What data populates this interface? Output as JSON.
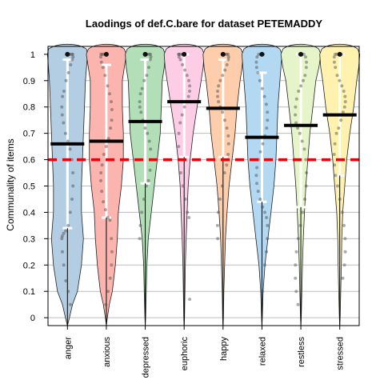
{
  "chart_data": {
    "type": "violin",
    "title": "Laodings of def.C.bare for dataset PETEMADDY",
    "xlabel": "",
    "ylabel": "Communality of items",
    "ylim": [
      -0.03,
      1.03
    ],
    "yticks": [
      0,
      0.1,
      0.2,
      0.3,
      0.4,
      0.5,
      0.6,
      0.7,
      0.8,
      0.9,
      1
    ],
    "ytick_labels": [
      "0",
      "0.1",
      "0.2",
      "0.3",
      "0.4",
      "0.5",
      "0.6",
      "0.7",
      "0.8",
      "0.9",
      "1"
    ],
    "grid": true,
    "reference_line": {
      "y": 0.6,
      "color": "#e8000b",
      "style": "dashed"
    },
    "categories": [
      "anger",
      "anxious",
      "depressed",
      "euphoric",
      "happy",
      "relaxed",
      "restless",
      "stressed"
    ],
    "colors": [
      "#b3cde3",
      "#fbb4ae",
      "#b2dfb8",
      "#fccde5",
      "#fdcdac",
      "#b3d9f2",
      "#e6f5c9",
      "#fff2ae"
    ],
    "means": [
      0.66,
      0.67,
      0.745,
      0.82,
      0.795,
      0.685,
      0.73,
      0.77
    ],
    "sd_low": [
      0.34,
      0.38,
      0.51,
      0.61,
      0.61,
      0.44,
      0.42,
      0.54
    ],
    "sd_high": [
      0.98,
      0.96,
      0.98,
      1.0,
      0.98,
      0.93,
      1.0,
      1.0
    ],
    "range_min": [
      0.0,
      0.0,
      0.0,
      0.0,
      0.0,
      0.0,
      0.0,
      0.0
    ],
    "density_profiles": [
      [
        [
          0,
          0.1
        ],
        [
          0.05,
          0.25
        ],
        [
          0.1,
          0.5
        ],
        [
          0.2,
          0.7
        ],
        [
          0.3,
          0.8
        ],
        [
          0.4,
          0.7
        ],
        [
          0.5,
          0.7
        ],
        [
          0.6,
          0.75
        ],
        [
          0.7,
          0.8
        ],
        [
          0.8,
          0.85
        ],
        [
          0.9,
          0.9
        ],
        [
          0.95,
          0.95
        ],
        [
          1.0,
          1.0
        ],
        [
          1.02,
          0.95
        ]
      ],
      [
        [
          0,
          0.05
        ],
        [
          0.05,
          0.15
        ],
        [
          0.1,
          0.3
        ],
        [
          0.2,
          0.45
        ],
        [
          0.3,
          0.55
        ],
        [
          0.4,
          0.6
        ],
        [
          0.5,
          0.75
        ],
        [
          0.6,
          0.85
        ],
        [
          0.7,
          0.85
        ],
        [
          0.8,
          0.8
        ],
        [
          0.9,
          0.8
        ],
        [
          0.95,
          0.9
        ],
        [
          1.0,
          1.0
        ],
        [
          1.02,
          0.9
        ]
      ],
      [
        [
          0,
          0.02
        ],
        [
          0.1,
          0.05
        ],
        [
          0.2,
          0.08
        ],
        [
          0.3,
          0.15
        ],
        [
          0.4,
          0.3
        ],
        [
          0.5,
          0.45
        ],
        [
          0.6,
          0.6
        ],
        [
          0.7,
          0.75
        ],
        [
          0.8,
          0.8
        ],
        [
          0.9,
          0.85
        ],
        [
          0.95,
          0.95
        ],
        [
          1.0,
          1.0
        ],
        [
          1.02,
          0.9
        ]
      ],
      [
        [
          0,
          0.02
        ],
        [
          0.1,
          0.04
        ],
        [
          0.2,
          0.06
        ],
        [
          0.3,
          0.1
        ],
        [
          0.4,
          0.15
        ],
        [
          0.5,
          0.2
        ],
        [
          0.6,
          0.3
        ],
        [
          0.7,
          0.45
        ],
        [
          0.8,
          0.65
        ],
        [
          0.9,
          0.85
        ],
        [
          0.95,
          0.95
        ],
        [
          1.0,
          1.0
        ],
        [
          1.02,
          0.9
        ]
      ],
      [
        [
          0,
          0.02
        ],
        [
          0.1,
          0.04
        ],
        [
          0.2,
          0.08
        ],
        [
          0.3,
          0.12
        ],
        [
          0.4,
          0.2
        ],
        [
          0.5,
          0.3
        ],
        [
          0.6,
          0.45
        ],
        [
          0.7,
          0.6
        ],
        [
          0.8,
          0.7
        ],
        [
          0.9,
          0.85
        ],
        [
          0.95,
          0.95
        ],
        [
          1.0,
          1.0
        ],
        [
          1.02,
          0.9
        ]
      ],
      [
        [
          0,
          0.02
        ],
        [
          0.1,
          0.06
        ],
        [
          0.2,
          0.15
        ],
        [
          0.3,
          0.3
        ],
        [
          0.4,
          0.45
        ],
        [
          0.5,
          0.6
        ],
        [
          0.6,
          0.7
        ],
        [
          0.7,
          0.75
        ],
        [
          0.8,
          0.8
        ],
        [
          0.9,
          0.9
        ],
        [
          0.95,
          0.95
        ],
        [
          1.0,
          1.0
        ],
        [
          1.02,
          0.9
        ]
      ],
      [
        [
          0,
          0.02
        ],
        [
          0.1,
          0.05
        ],
        [
          0.2,
          0.08
        ],
        [
          0.3,
          0.12
        ],
        [
          0.4,
          0.18
        ],
        [
          0.5,
          0.25
        ],
        [
          0.6,
          0.35
        ],
        [
          0.7,
          0.45
        ],
        [
          0.8,
          0.6
        ],
        [
          0.9,
          0.75
        ],
        [
          0.95,
          0.9
        ],
        [
          1.0,
          1.0
        ],
        [
          1.02,
          0.9
        ]
      ],
      [
        [
          0,
          0.02
        ],
        [
          0.1,
          0.05
        ],
        [
          0.2,
          0.08
        ],
        [
          0.3,
          0.1
        ],
        [
          0.4,
          0.15
        ],
        [
          0.5,
          0.25
        ],
        [
          0.6,
          0.35
        ],
        [
          0.7,
          0.5
        ],
        [
          0.8,
          0.7
        ],
        [
          0.9,
          0.85
        ],
        [
          0.95,
          0.95
        ],
        [
          1.0,
          1.0
        ],
        [
          1.02,
          0.9
        ]
      ]
    ],
    "points": [
      [
        1,
        1,
        1,
        1,
        0.99,
        0.98,
        0.96,
        0.93,
        0.9,
        0.86,
        0.84,
        0.8,
        0.77,
        0.74,
        0.7,
        0.67,
        0.64,
        0.6,
        0.55,
        0.5,
        0.45,
        0.4,
        0.35,
        0.33,
        0.32,
        0.31,
        0.3,
        0.25,
        0.2,
        0.14,
        0.1,
        0.05
      ],
      [
        1,
        1,
        1,
        1,
        0.99,
        0.97,
        0.95,
        0.92,
        0.88,
        0.85,
        0.82,
        0.79,
        0.75,
        0.72,
        0.68,
        0.65,
        0.62,
        0.58,
        0.55,
        0.52,
        0.48,
        0.44,
        0.41,
        0.38,
        0.37,
        0.3,
        0.25,
        0.2,
        0.15,
        0.1,
        0.05
      ],
      [
        1,
        1,
        1,
        1,
        0.99,
        0.98,
        0.95,
        0.92,
        0.9,
        0.87,
        0.85,
        0.82,
        0.8,
        0.78,
        0.75,
        0.72,
        0.7,
        0.67,
        0.64,
        0.6,
        0.56,
        0.52,
        0.5,
        0.45,
        0.4,
        0.35,
        0.3
      ],
      [
        1,
        1,
        1,
        1,
        1,
        0.99,
        0.98,
        0.96,
        0.94,
        0.92,
        0.9,
        0.88,
        0.86,
        0.84,
        0.82,
        0.8,
        0.77,
        0.74,
        0.7,
        0.65,
        0.6,
        0.55,
        0.5,
        0.45,
        0.4,
        0.38,
        0.07
      ],
      [
        1,
        1,
        1,
        1,
        0.99,
        0.98,
        0.96,
        0.94,
        0.92,
        0.9,
        0.88,
        0.86,
        0.84,
        0.82,
        0.8,
        0.78,
        0.75,
        0.72,
        0.69,
        0.66,
        0.62,
        0.58,
        0.55,
        0.5,
        0.45,
        0.4,
        0.35,
        0.3
      ],
      [
        1,
        1,
        1,
        0.99,
        0.97,
        0.95,
        0.93,
        0.9,
        0.87,
        0.84,
        0.81,
        0.78,
        0.75,
        0.72,
        0.69,
        0.66,
        0.63,
        0.6,
        0.57,
        0.54,
        0.51,
        0.48,
        0.45,
        0.42,
        0.4,
        0.38,
        0.35,
        0.3,
        0.25,
        0.2,
        0.1
      ],
      [
        1,
        1,
        1,
        0.99,
        0.97,
        0.95,
        0.92,
        0.9,
        0.88,
        0.86,
        0.83,
        0.8,
        0.77,
        0.74,
        0.72,
        0.7,
        0.67,
        0.64,
        0.6,
        0.55,
        0.5,
        0.45,
        0.4,
        0.35,
        0.3,
        0.25,
        0.2,
        0.15,
        0.1,
        0.05
      ],
      [
        1,
        1,
        1,
        1,
        0.99,
        0.97,
        0.95,
        0.92,
        0.9,
        0.88,
        0.86,
        0.84,
        0.82,
        0.8,
        0.78,
        0.75,
        0.72,
        0.7,
        0.66,
        0.62,
        0.58,
        0.54,
        0.5,
        0.45,
        0.4,
        0.35,
        0.3,
        0.25,
        0.2,
        0.15
      ]
    ]
  }
}
